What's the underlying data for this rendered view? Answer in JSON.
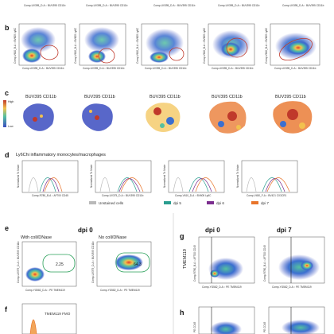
{
  "panels": {
    "a": {
      "letter": "",
      "x_label": "Comp-UV395_D-A :: BUV395 CD11b"
    },
    "b": {
      "letter": "b",
      "x_label": "Comp-UV395_D-A :: BUV395 CD11b",
      "y_label": "Comp-V610_B-A :: BV605 Ly6C"
    },
    "c": {
      "letter": "c",
      "scale_high": "High",
      "scale_low": "Low",
      "titles": [
        "BUV395 CD11b",
        "BUV395 CD11b",
        "BUV395 CD11b",
        "BUV395 CD11b",
        "BUV395 CD11b"
      ]
    },
    "d": {
      "letter": "d",
      "title": "Ly6Chi inflammatory monocytes/macrophages",
      "y_label": "Normalized To Mode",
      "x_labels": [
        "Comp-R780_B-A :: AF700 CD45",
        "Comp-UV375_D-A :: BUV395 CD11b",
        "Comp-V610_D-A :: BV605 Ly6C",
        "Comp-V450_F-A :: BV421 CX3CR1"
      ],
      "legend": [
        {
          "label": "Unstained cells",
          "color": "#b9b9b9"
        },
        {
          "label": "dpi 5",
          "color": "#2a9d8f"
        },
        {
          "label": "dpi 6",
          "color": "#7b2d8e"
        },
        {
          "label": "dpi 7",
          "color": "#e8742a"
        }
      ]
    },
    "e": {
      "letter": "e",
      "title_center": "dpi 0",
      "left_title": "With coll/DNase",
      "right_title": "No coll/DNase",
      "left_gate": "2.25",
      "right_gate": "64.3",
      "x_label": "Comp-YG582_D-A :: PE TMEM119",
      "y_label": "Comp-UV375_D-A :: BUV395 CD11b"
    },
    "f": {
      "letter": "f",
      "fmo_label": "TMEM119 FMO"
    },
    "g": {
      "letter": "g",
      "left_title": "dpi 0",
      "right_title": "dpi 7",
      "row_label": "TMEM119",
      "x_label": "Comp-YG582_D-A :: PE TMEM119",
      "y_label": "Comp-R780_B-A :: AF700 CD45"
    },
    "h": {
      "letter": "h",
      "y_label": "PE CD45"
    }
  },
  "colors": {
    "density_low": "#3b4cc0",
    "density_mid": "#54c0a0",
    "density_high": "#e33b2a",
    "gate_red": "#c0392b",
    "gate_green": "#2aa05a",
    "gate_black": "#222222"
  }
}
